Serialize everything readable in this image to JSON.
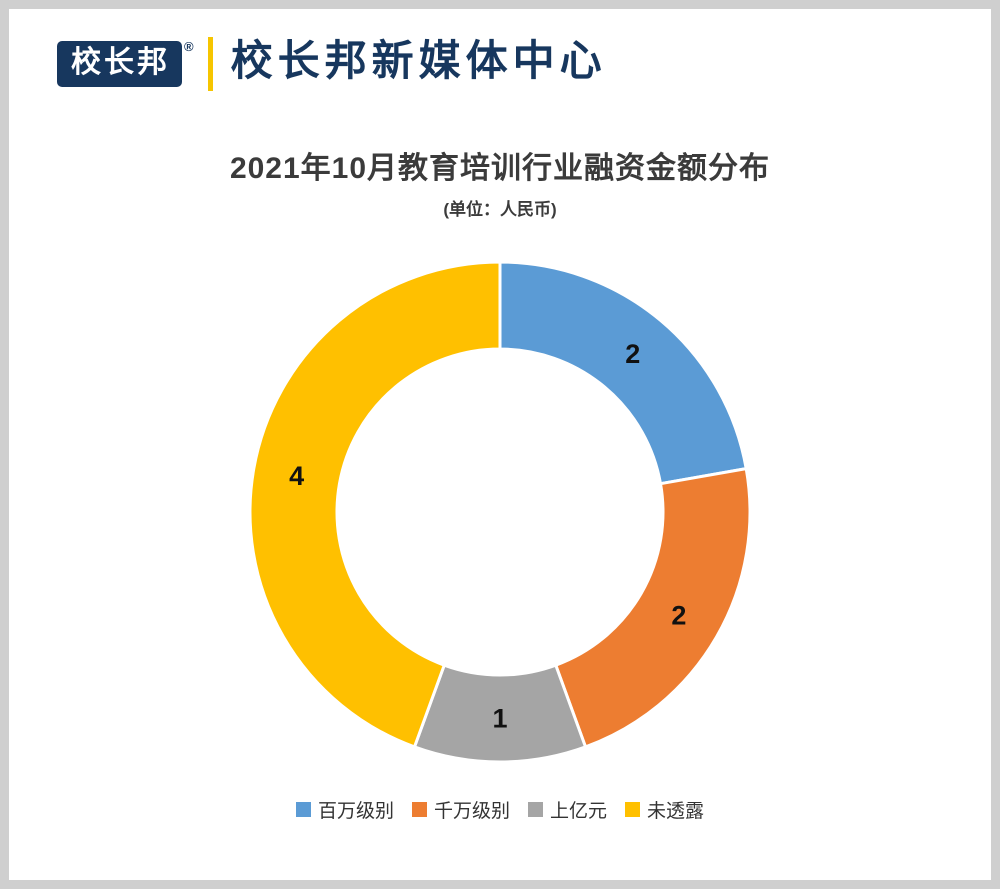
{
  "header": {
    "logo_text": "校长邦",
    "registered_mark": "®",
    "title": "校长邦新媒体中心"
  },
  "chart_data": {
    "type": "pie",
    "subtype": "donut",
    "title": "2021年10月教育培训行业融资金额分布",
    "unit_note": "(单位：人民币)",
    "categories": [
      "百万级别",
      "千万级别",
      "上亿元",
      "未透露"
    ],
    "values": [
      2,
      2,
      1,
      4
    ],
    "colors": [
      "#5B9BD5",
      "#ED7D31",
      "#A5A5A5",
      "#FFC000"
    ],
    "total": 9,
    "start_angle_deg": 0,
    "direction": "clockwise",
    "donut_hole_ratio": 0.65,
    "data_labels": true,
    "legend_position": "bottom"
  },
  "style": {
    "navy": "#17375E",
    "gold": "#F6C500",
    "segment_border": "#ffffff"
  }
}
